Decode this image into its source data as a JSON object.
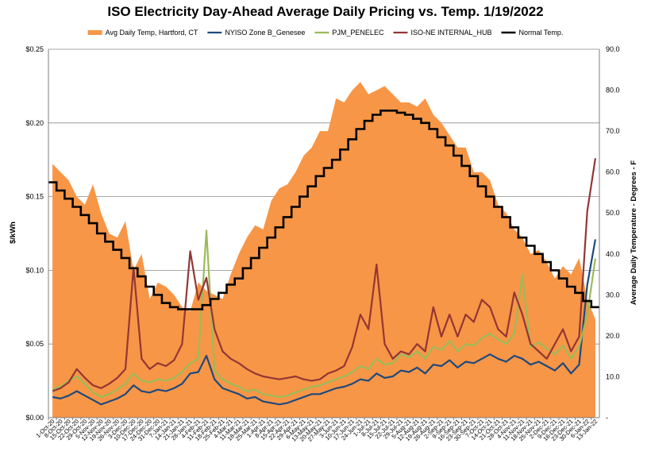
{
  "chart_data": {
    "type": "line",
    "title": "ISO Electricity Day-Ahead Average Daily Pricing vs. Temp. 1/19/2022",
    "ylabel": "$/kWh",
    "y2label": "Average Daily Temperature - Degrees - F",
    "ylim": [
      0,
      0.25
    ],
    "y2lim": [
      0,
      90
    ],
    "yticks": [
      "$0.00",
      "$0.05",
      "$0.10",
      "$0.15",
      "$0.20",
      "$0.25"
    ],
    "y2ticks": [
      "-",
      "10.0",
      "20.0",
      "30.0",
      "40.0",
      "50.0",
      "60.0",
      "70.0",
      "80.0",
      "90.0"
    ],
    "grid": "horizontal",
    "legend_position": "top",
    "x_categories": [
      "1-Oct-20",
      "8-Oct-20",
      "15-Oct-20",
      "22-Oct-20",
      "29-Oct-20",
      "5-Nov-20",
      "12-Nov-20",
      "19-Nov-20",
      "26-Nov-20",
      "3-Dec-20",
      "10-Dec-20",
      "17-Dec-20",
      "24-Dec-20",
      "31-Dec-20",
      "7-Jan-21",
      "14-Jan-21",
      "21-Jan-21",
      "28-Jan-21",
      "4-Feb-21",
      "11-Feb-21",
      "18-Feb-21",
      "25-Feb-21",
      "4-Mar-21",
      "11-Mar-21",
      "18-Mar-21",
      "25-Mar-21",
      "1-Apr-21",
      "8-Apr-21",
      "15-Apr-21",
      "22-Apr-21",
      "29-Apr-21",
      "6-May-21",
      "13-May-21",
      "20-May-21",
      "27-May-21",
      "3-Jun-21",
      "10-Jun-21",
      "17-Jun-21",
      "24-Jun-21",
      "1-Jul-21",
      "8-Jul-21",
      "15-Jul-21",
      "22-Jul-21",
      "29-Jul-21",
      "5-Aug-21",
      "12-Aug-21",
      "19-Aug-21",
      "26-Aug-21",
      "2-Sep-21",
      "9-Sep-21",
      "16-Sep-21",
      "23-Sep-21",
      "30-Sep-21",
      "7-Oct-21",
      "14-Oct-21",
      "21-Oct-21",
      "28-Oct-21",
      "4-Nov-21",
      "11-Nov-21",
      "18-Nov-21",
      "25-Nov-21",
      "2-Dec-21",
      "9-Dec-21",
      "16-Dec-21",
      "23-Dec-21",
      "30-Dec-21",
      "6-Jan-22",
      "13-Jan-22"
    ],
    "series": [
      {
        "name": "Avg Daily Temp, Hartford, CT",
        "axis": "right",
        "style": "area",
        "color": "#F79646",
        "values": [
          62,
          60,
          58,
          54,
          52,
          57,
          50,
          45,
          44,
          48,
          36,
          40,
          29,
          33,
          32,
          30,
          27,
          26,
          33,
          31,
          30,
          29,
          35,
          40,
          44,
          47,
          46,
          53,
          56,
          57,
          60,
          64,
          66,
          70,
          70,
          78,
          77,
          80,
          82,
          79,
          80,
          81,
          79,
          77,
          77,
          76,
          78,
          74,
          72,
          69,
          66,
          66,
          60,
          60,
          58,
          52,
          50,
          46,
          44,
          40,
          41,
          38,
          34,
          37,
          35,
          39,
          29,
          24
        ]
      },
      {
        "name": "NYISO Zone B_Genesee",
        "axis": "left",
        "style": "line",
        "color": "#1F497D",
        "values": [
          0.014,
          0.013,
          0.015,
          0.018,
          0.015,
          0.012,
          0.009,
          0.011,
          0.013,
          0.016,
          0.022,
          0.018,
          0.017,
          0.019,
          0.018,
          0.02,
          0.023,
          0.03,
          0.031,
          0.042,
          0.026,
          0.02,
          0.018,
          0.016,
          0.013,
          0.014,
          0.011,
          0.01,
          0.009,
          0.01,
          0.012,
          0.014,
          0.016,
          0.016,
          0.018,
          0.02,
          0.021,
          0.023,
          0.026,
          0.025,
          0.03,
          0.027,
          0.028,
          0.032,
          0.031,
          0.034,
          0.03,
          0.036,
          0.035,
          0.039,
          0.034,
          0.038,
          0.037,
          0.04,
          0.043,
          0.04,
          0.038,
          0.042,
          0.04,
          0.036,
          0.038,
          0.035,
          0.032,
          0.037,
          0.03,
          0.036,
          0.09,
          0.121
        ]
      },
      {
        "name": "PJM_PENELEC",
        "axis": "left",
        "style": "line",
        "color": "#9BBB59",
        "values": [
          0.019,
          0.021,
          0.025,
          0.028,
          0.023,
          0.017,
          0.014,
          0.016,
          0.019,
          0.023,
          0.03,
          0.025,
          0.024,
          0.026,
          0.025,
          0.027,
          0.031,
          0.037,
          0.04,
          0.127,
          0.032,
          0.026,
          0.023,
          0.021,
          0.018,
          0.019,
          0.016,
          0.015,
          0.014,
          0.015,
          0.017,
          0.019,
          0.021,
          0.022,
          0.024,
          0.026,
          0.028,
          0.031,
          0.035,
          0.033,
          0.04,
          0.036,
          0.037,
          0.043,
          0.041,
          0.045,
          0.04,
          0.048,
          0.046,
          0.052,
          0.045,
          0.05,
          0.049,
          0.054,
          0.057,
          0.053,
          0.05,
          0.057,
          0.097,
          0.048,
          0.051,
          0.047,
          0.043,
          0.049,
          0.04,
          0.048,
          0.07,
          0.108
        ]
      },
      {
        "name": "ISO-NE INTERNAL_HUB",
        "axis": "left",
        "style": "line",
        "color": "#943634",
        "values": [
          0.018,
          0.02,
          0.024,
          0.033,
          0.027,
          0.022,
          0.02,
          0.023,
          0.027,
          0.033,
          0.102,
          0.04,
          0.033,
          0.037,
          0.035,
          0.039,
          0.05,
          0.113,
          0.08,
          0.095,
          0.06,
          0.045,
          0.04,
          0.037,
          0.033,
          0.03,
          0.028,
          0.027,
          0.026,
          0.027,
          0.028,
          0.026,
          0.025,
          0.026,
          0.03,
          0.032,
          0.035,
          0.048,
          0.07,
          0.06,
          0.104,
          0.05,
          0.04,
          0.045,
          0.043,
          0.05,
          0.045,
          0.075,
          0.055,
          0.07,
          0.055,
          0.07,
          0.065,
          0.08,
          0.075,
          0.06,
          0.055,
          0.085,
          0.07,
          0.05,
          0.045,
          0.04,
          0.05,
          0.06,
          0.045,
          0.055,
          0.14,
          0.176
        ]
      },
      {
        "name": "Normal Temp.",
        "axis": "right",
        "style": "step",
        "color": "#000000",
        "values": [
          57.5,
          55.5,
          53.5,
          51.5,
          49.5,
          47.5,
          45.0,
          43.0,
          41.0,
          39.0,
          36.5,
          34.5,
          32.0,
          30.0,
          28.0,
          27.0,
          26.5,
          26.5,
          26.5,
          27.5,
          29.0,
          30.5,
          32.5,
          34.0,
          36.5,
          39.0,
          41.5,
          44.0,
          46.5,
          49.0,
          51.5,
          54.0,
          56.5,
          59.0,
          61.0,
          63.0,
          65.5,
          68.0,
          70.5,
          72.5,
          74.0,
          75.0,
          75.0,
          74.5,
          74.0,
          73.0,
          72.0,
          70.5,
          68.5,
          66.5,
          64.0,
          61.5,
          59.0,
          56.5,
          54.0,
          51.5,
          49.0,
          46.5,
          44.0,
          42.0,
          40.0,
          38.0,
          36.0,
          34.0,
          32.0,
          30.5,
          28.5,
          27.0
        ]
      }
    ]
  }
}
